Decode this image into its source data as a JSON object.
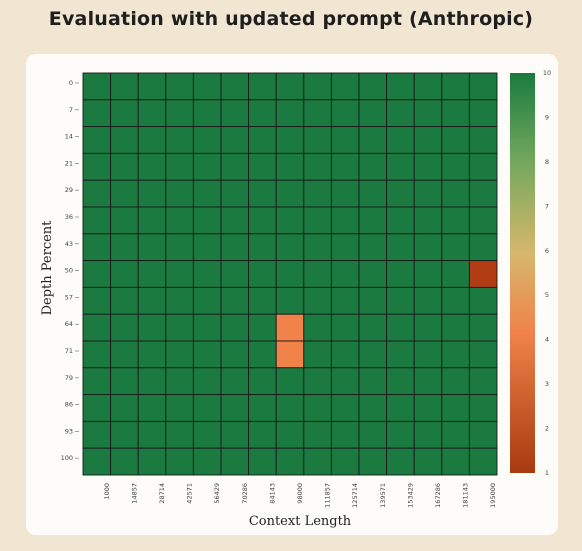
{
  "title": "Evaluation with updated prompt (Anthropic)",
  "chart_data": {
    "type": "heatmap",
    "xlabel": "Context Length",
    "ylabel": "Depth Percent",
    "x_ticks": [
      "1000",
      "14857",
      "28714",
      "42571",
      "56429",
      "70286",
      "84143",
      "98000",
      "111857",
      "125714",
      "139571",
      "153429",
      "167286",
      "181143",
      "195000"
    ],
    "y_ticks": [
      "0",
      "7",
      "14",
      "21",
      "29",
      "36",
      "43",
      "50",
      "57",
      "64",
      "71",
      "79",
      "86",
      "93",
      "100"
    ],
    "default_value": 10,
    "overrides": [
      {
        "row": 7,
        "col": 14,
        "value": 2
      },
      {
        "row": 9,
        "col": 7,
        "value": 4
      },
      {
        "row": 10,
        "col": 7,
        "value": 4
      }
    ],
    "colorbar": {
      "min": 1,
      "max": 10,
      "ticks": [
        "1",
        "2",
        "3",
        "4",
        "5",
        "6",
        "7",
        "8",
        "9",
        "10"
      ]
    }
  }
}
